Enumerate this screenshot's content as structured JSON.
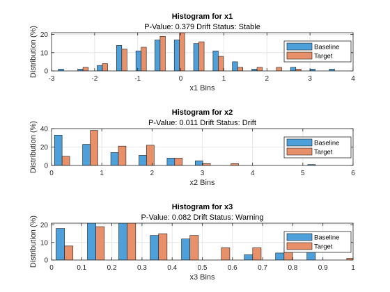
{
  "colors": {
    "baseline": "#4DA0D9",
    "target": "#E8906A",
    "edge": "#1a1a1a",
    "grid": "#e6e6e6"
  },
  "chart_data": [
    {
      "type": "bar",
      "title": "Histogram for x1",
      "subtitle": "P-Value: 0.379 Drift Status: Stable",
      "xlabel": "x1 Bins",
      "ylabel": "Distribution (%)",
      "xlim": [
        -3,
        4
      ],
      "ylim": [
        0,
        21
      ],
      "xticks": [
        "-3",
        "-2",
        "-1",
        "0",
        "1",
        "2",
        "3",
        "4"
      ],
      "xtick_values": [
        -3,
        -2,
        -1,
        0,
        1,
        2,
        3,
        4
      ],
      "yticks": [
        "0",
        "10",
        "20"
      ],
      "ytick_values": [
        0,
        10,
        20
      ],
      "grid": true,
      "legend_position": "right",
      "x": [
        -2.72,
        -2.27,
        -1.82,
        -1.37,
        -0.92,
        -0.48,
        -0.03,
        0.42,
        0.87,
        1.32,
        1.77,
        2.22,
        2.67,
        3.12,
        3.57
      ],
      "series": [
        {
          "name": "Baseline",
          "values": [
            1,
            1,
            3,
            14,
            11,
            17,
            17,
            15,
            11,
            5,
            1,
            0,
            2,
            1,
            1
          ]
        },
        {
          "name": "Target",
          "values": [
            0,
            2,
            4,
            12,
            13,
            19,
            21,
            16,
            8,
            2,
            2,
            2,
            1,
            0,
            0
          ]
        }
      ]
    },
    {
      "type": "bar",
      "title": "Histogram for x2",
      "subtitle": "P-Value: 0.011 Drift Status: Drift",
      "xlabel": "x2 Bins",
      "ylabel": "Distribution (%)",
      "xlim": [
        0,
        6
      ],
      "ylim": [
        0,
        40
      ],
      "xticks": [
        "0",
        "1",
        "2",
        "3",
        "4",
        "5",
        "6"
      ],
      "xtick_values": [
        0,
        1,
        2,
        3,
        4,
        5,
        6
      ],
      "yticks": [
        "0",
        "20",
        "40"
      ],
      "ytick_values": [
        0,
        20,
        40
      ],
      "grid": true,
      "legend_position": "right",
      "x": [
        0.21,
        0.77,
        1.33,
        1.89,
        2.45,
        3.01,
        3.57,
        4.13,
        4.69,
        5.25,
        5.81
      ],
      "series": [
        {
          "name": "Baseline",
          "values": [
            33,
            23,
            14,
            11,
            8,
            5,
            0,
            0,
            0,
            1,
            0
          ]
        },
        {
          "name": "Target",
          "values": [
            10,
            38,
            21,
            22,
            8,
            2,
            2,
            0,
            0,
            0,
            0
          ]
        }
      ]
    },
    {
      "type": "bar",
      "title": "Histogram for x3",
      "subtitle": "P-Value: 0.082 Drift Status: Warning",
      "xlabel": "x3 Bins",
      "ylabel": "Distribution (%)",
      "xlim": [
        0,
        1
      ],
      "ylim": [
        0,
        21
      ],
      "xticks": [
        "0",
        "0.1",
        "0.2",
        "0.3",
        "0.4",
        "0.5",
        "0.6",
        "0.7",
        "0.8",
        "0.9",
        "1"
      ],
      "xtick_values": [
        0,
        0.1,
        0.2,
        0.3,
        0.4,
        0.5,
        0.6,
        0.7,
        0.8,
        0.9,
        1
      ],
      "yticks": [
        "0",
        "10",
        "20"
      ],
      "ytick_values": [
        0,
        10,
        20
      ],
      "grid": true,
      "legend_position": "right",
      "x": [
        0.043,
        0.147,
        0.251,
        0.355,
        0.459,
        0.563,
        0.667,
        0.771,
        0.875,
        0.979
      ],
      "series": [
        {
          "name": "Baseline",
          "values": [
            18,
            22,
            22,
            14,
            12,
            0,
            3,
            4,
            8,
            0
          ]
        },
        {
          "name": "Target",
          "values": [
            8,
            19,
            22,
            15,
            14,
            7,
            7,
            7,
            0,
            1
          ]
        }
      ]
    }
  ]
}
